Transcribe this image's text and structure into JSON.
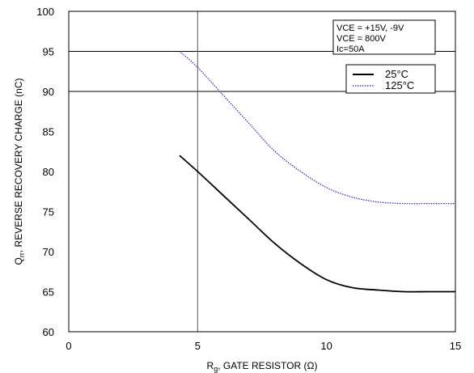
{
  "chart_data": {
    "type": "line",
    "title": "",
    "xlabel": "R",
    "xlabel_sub": "g",
    "xlabel_rest": ", GATE RESISTOR (Ω)",
    "ylabel": "Q",
    "ylabel_sub": "rr",
    "ylabel_rest": ", REVERSE RECOVERY CHARGE (nC)",
    "xlim": [
      0,
      15
    ],
    "ylim": [
      60,
      100
    ],
    "xticks": [
      0,
      5,
      10,
      15
    ],
    "xtick_labels": [
      "0",
      "5",
      "10",
      "15"
    ],
    "yticks": [
      60,
      65,
      70,
      75,
      80,
      85,
      90,
      95,
      100
    ],
    "ytick_labels": [
      "60",
      "65",
      "70",
      "75",
      "80",
      "85",
      "90",
      "95",
      "100"
    ],
    "gridlines_y": [
      90,
      95,
      100
    ],
    "gridlines_x": [
      5
    ],
    "conditions": {
      "line1": "VCE = +15V, -9V",
      "line2": "VCE = 800V",
      "line3": "Ic=50A"
    },
    "legend_position": "top-right",
    "series": [
      {
        "name": "25°C",
        "style": "solid",
        "color": "#000000",
        "x": [
          4.3,
          5,
          6,
          7,
          8,
          9,
          10,
          11,
          12,
          13,
          14,
          15
        ],
        "values": [
          82,
          80,
          77,
          74,
          71,
          68.5,
          66.5,
          65.5,
          65.2,
          65,
          65,
          65
        ]
      },
      {
        "name": "125°C",
        "style": "dotted",
        "color": "#1f1fd6",
        "x": [
          4.3,
          5,
          6,
          7,
          8,
          9,
          10,
          11,
          12,
          13,
          14,
          15
        ],
        "values": [
          95,
          93,
          89.5,
          86,
          82.5,
          80,
          78,
          76.8,
          76.2,
          76,
          76,
          76
        ]
      }
    ]
  }
}
